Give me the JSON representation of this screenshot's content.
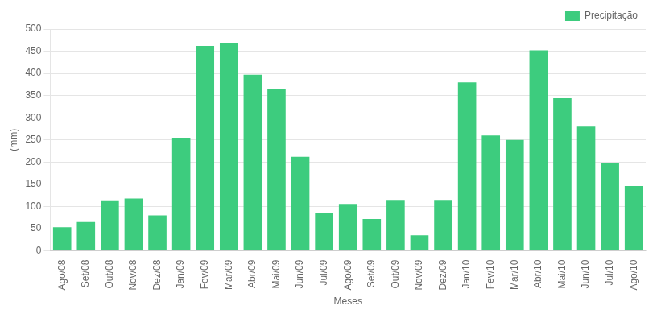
{
  "chart_data": {
    "type": "bar",
    "categories": [
      "Ago/08",
      "Set/08",
      "Out/08",
      "Nov/08",
      "Dez/08",
      "Jan/09",
      "Fev/09",
      "Mar/09",
      "Abr/09",
      "Mai/09",
      "Jun/09",
      "Jul/09",
      "Ago/09",
      "Set/09",
      "Out/09",
      "Nov/09",
      "Dez/09",
      "Jan/10",
      "Fev/10",
      "Mar/10",
      "Abr/10",
      "Mai/10",
      "Jun/10",
      "Jul/10",
      "Ago/10"
    ],
    "series": [
      {
        "name": "Precipitação",
        "color": "#3dcc7e",
        "values": [
          53,
          65,
          112,
          118,
          80,
          255,
          462,
          468,
          397,
          365,
          212,
          85,
          106,
          72,
          113,
          35,
          113,
          380,
          260,
          250,
          452,
          344,
          280,
          197,
          146
        ]
      }
    ],
    "xlabel": "Meses",
    "ylabel": "(mm)",
    "ylim": [
      0,
      500
    ],
    "yticks": [
      0,
      50,
      100,
      150,
      200,
      250,
      300,
      350,
      400,
      450,
      500
    ],
    "grid": true,
    "legend": "upper right"
  }
}
